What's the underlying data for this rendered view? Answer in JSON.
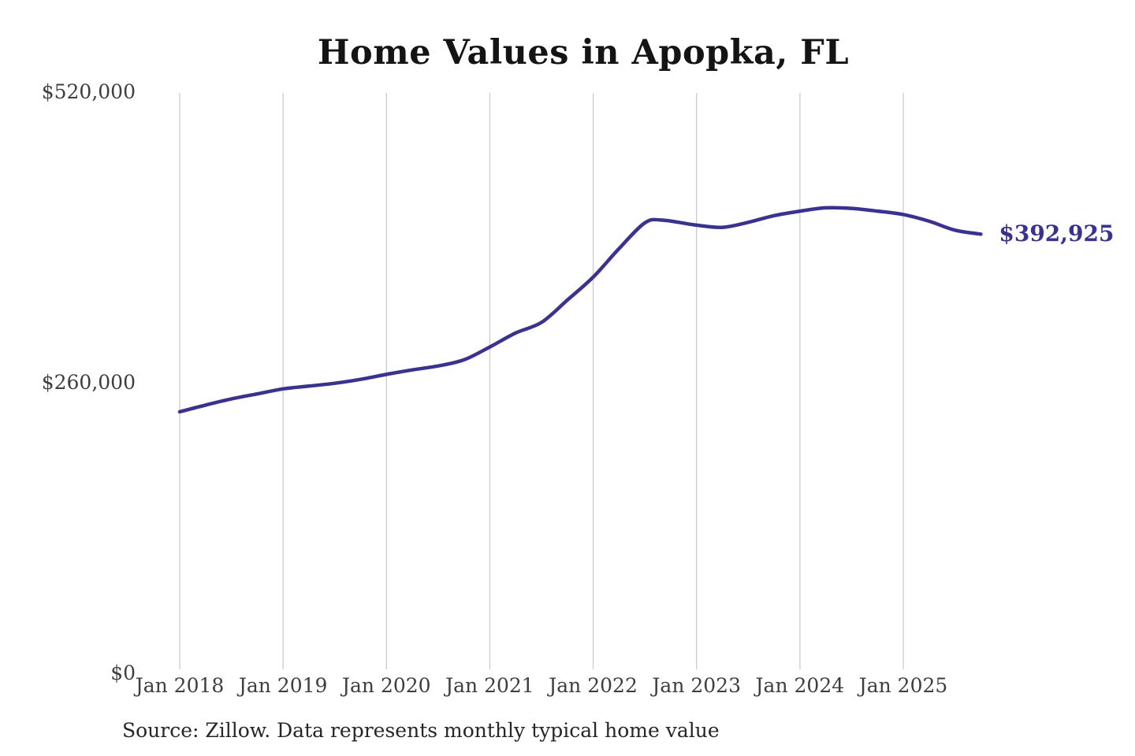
{
  "chart_data": {
    "type": "line",
    "title": "Home Values in Apopka, FL",
    "source": "Source: Zillow. Data represents monthly typical home value",
    "end_label": "$392,925",
    "line_color": "#39328f",
    "grid_color": "#cbcbcb",
    "tick_text_color": "#3e3e3e",
    "xlabel": "",
    "ylabel": "",
    "ylim": [
      0,
      520000
    ],
    "grid": "vertical-only",
    "x_ticks": [
      "Jan 2018",
      "Jan 2019",
      "Jan 2020",
      "Jan 2021",
      "Jan 2022",
      "Jan 2023",
      "Jan 2024",
      "Jan 2025"
    ],
    "y_ticks": [
      {
        "label": "$520,000",
        "value": 520000
      },
      {
        "label": "$260,000",
        "value": 260000
      },
      {
        "label": "$0",
        "value": 0
      }
    ],
    "points": [
      {
        "date": "2018-01",
        "value": 234000
      },
      {
        "date": "2018-04",
        "value": 240000
      },
      {
        "date": "2018-07",
        "value": 245500
      },
      {
        "date": "2018-10",
        "value": 250000
      },
      {
        "date": "2019-01",
        "value": 254500
      },
      {
        "date": "2019-04",
        "value": 257000
      },
      {
        "date": "2019-07",
        "value": 259500
      },
      {
        "date": "2019-10",
        "value": 263000
      },
      {
        "date": "2020-01",
        "value": 267500
      },
      {
        "date": "2020-04",
        "value": 271500
      },
      {
        "date": "2020-07",
        "value": 275000
      },
      {
        "date": "2020-10",
        "value": 280500
      },
      {
        "date": "2021-01",
        "value": 292000
      },
      {
        "date": "2021-04",
        "value": 304500
      },
      {
        "date": "2021-07",
        "value": 314000
      },
      {
        "date": "2021-10",
        "value": 334000
      },
      {
        "date": "2022-01",
        "value": 354500
      },
      {
        "date": "2022-04",
        "value": 380000
      },
      {
        "date": "2022-07",
        "value": 403000
      },
      {
        "date": "2022-09",
        "value": 405500
      },
      {
        "date": "2023-01",
        "value": 401000
      },
      {
        "date": "2023-04",
        "value": 399000
      },
      {
        "date": "2023-07",
        "value": 403500
      },
      {
        "date": "2023-10",
        "value": 409500
      },
      {
        "date": "2024-01",
        "value": 413500
      },
      {
        "date": "2024-04",
        "value": 416500
      },
      {
        "date": "2024-07",
        "value": 416000
      },
      {
        "date": "2024-10",
        "value": 413500
      },
      {
        "date": "2025-01",
        "value": 410500
      },
      {
        "date": "2025-04",
        "value": 404500
      },
      {
        "date": "2025-07",
        "value": 396500
      },
      {
        "date": "2025-10",
        "value": 392925
      }
    ]
  }
}
